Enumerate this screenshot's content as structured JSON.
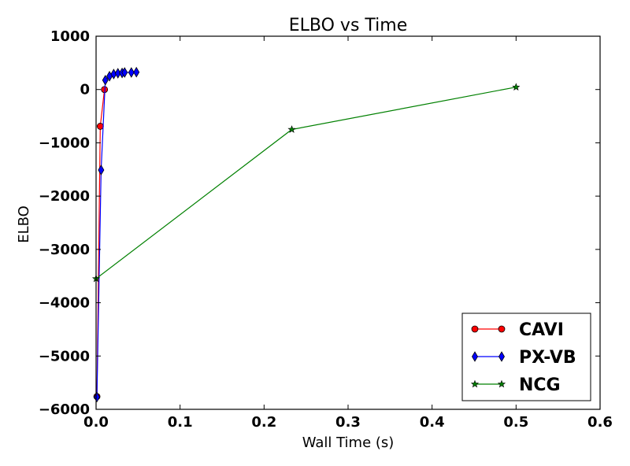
{
  "chart_data": {
    "type": "line",
    "title": "ELBO vs Time",
    "xlabel": "Wall Time (s)",
    "ylabel": "ELBO",
    "xlim": [
      0.0,
      0.6
    ],
    "ylim": [
      -6000,
      1000
    ],
    "xticks": [
      0.0,
      0.1,
      0.2,
      0.3,
      0.4,
      0.5,
      0.6
    ],
    "xtick_labels": [
      "0.0",
      "0.1",
      "0.2",
      "0.3",
      "0.4",
      "0.5",
      "0.6"
    ],
    "yticks": [
      -6000,
      -5000,
      -4000,
      -3000,
      -2000,
      -1000,
      0,
      1000
    ],
    "ytick_labels": [
      "−6000",
      "−5000",
      "−4000",
      "−3000",
      "−2000",
      "−1000",
      "0",
      "1000"
    ],
    "grid": false,
    "legend_position": "bottom-right",
    "series": [
      {
        "name": "CAVI",
        "color": "#ff0000",
        "marker": "circle",
        "x": [
          0.001,
          0.005,
          0.01
        ],
        "y": [
          -5760,
          -690,
          0
        ]
      },
      {
        "name": "PX-VB",
        "color": "#0000ff",
        "marker": "diamond",
        "x": [
          0.001,
          0.006,
          0.011,
          0.016,
          0.021,
          0.026,
          0.031,
          0.034,
          0.042,
          0.048
        ],
        "y": [
          -5770,
          -1510,
          175,
          250,
          290,
          305,
          310,
          320,
          320,
          325
        ]
      },
      {
        "name": "NCG",
        "color": "#008000",
        "marker": "star",
        "x": [
          0.0,
          0.233,
          0.5
        ],
        "y": [
          -3550,
          -750,
          45
        ]
      }
    ]
  }
}
